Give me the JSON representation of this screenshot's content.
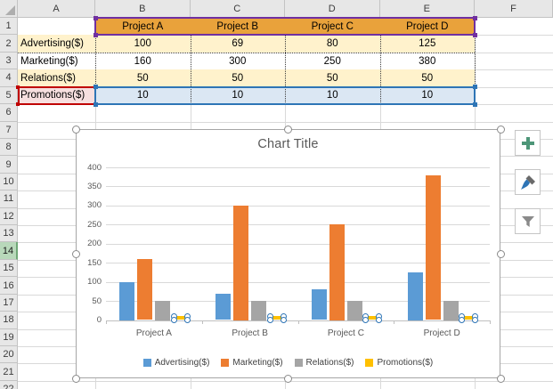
{
  "spreadsheet": {
    "column_headers": [
      "A",
      "B",
      "C",
      "D",
      "E",
      "F"
    ],
    "row_headers": [
      "1",
      "2",
      "3",
      "4",
      "5",
      "6",
      "7",
      "8",
      "9",
      "10",
      "11",
      "12",
      "13",
      "14",
      "15",
      "16",
      "17",
      "18",
      "19",
      "20",
      "21",
      "22"
    ],
    "active_row_header": "14",
    "table": {
      "column_fields": [
        "Project A",
        "Project B",
        "Project C",
        "Project D"
      ],
      "rows": [
        {
          "label": "Advertising($)",
          "values": [
            "100",
            "69",
            "80",
            "125"
          ]
        },
        {
          "label": "Marketing($)",
          "values": [
            "160",
            "300",
            "250",
            "380"
          ]
        },
        {
          "label": "Relations($)",
          "values": [
            "50",
            "50",
            "50",
            "50"
          ]
        },
        {
          "label": "Promotions($)",
          "values": [
            "10",
            "10",
            "10",
            "10"
          ]
        }
      ]
    },
    "colors": {
      "header_fill": "#E9A23B",
      "band_fill": "#FFF2CC",
      "white_fill": "#FFFFFF",
      "values_highlight_fill": "#DBE7F3",
      "name_highlight_fill": "#F6DFDF",
      "categories_border": "#7030A0",
      "values_border": "#2E75B6",
      "name_border": "#C00000",
      "active_row_header_fill": "#B8D8BA"
    }
  },
  "chart_data": {
    "type": "bar",
    "title": "Chart Title",
    "categories": [
      "Project A",
      "Project B",
      "Project C",
      "Project D"
    ],
    "series": [
      {
        "name": "Advertising($)",
        "color": "#5B9BD5",
        "values": [
          100,
          69,
          80,
          125
        ],
        "selected": false
      },
      {
        "name": "Marketing($)",
        "color": "#ED7D31",
        "values": [
          160,
          300,
          250,
          380
        ],
        "selected": false
      },
      {
        "name": "Relations($)",
        "color": "#A5A5A5",
        "values": [
          50,
          50,
          50,
          50
        ],
        "selected": false
      },
      {
        "name": "Promotions($)",
        "color": "#FFC000",
        "values": [
          10,
          10,
          10,
          10
        ],
        "selected": true
      }
    ],
    "y_axis": {
      "min": 0,
      "max": 400,
      "step": 50,
      "tick_labels": [
        "0",
        "50",
        "100",
        "150",
        "200",
        "250",
        "300",
        "350",
        "400"
      ]
    },
    "xlabel": "",
    "ylabel": "",
    "gridlines": true,
    "legend_position": "bottom"
  },
  "chart_tools": {
    "elements_button": "chart-elements",
    "styles_button": "chart-styles",
    "filters_button": "chart-filters"
  }
}
